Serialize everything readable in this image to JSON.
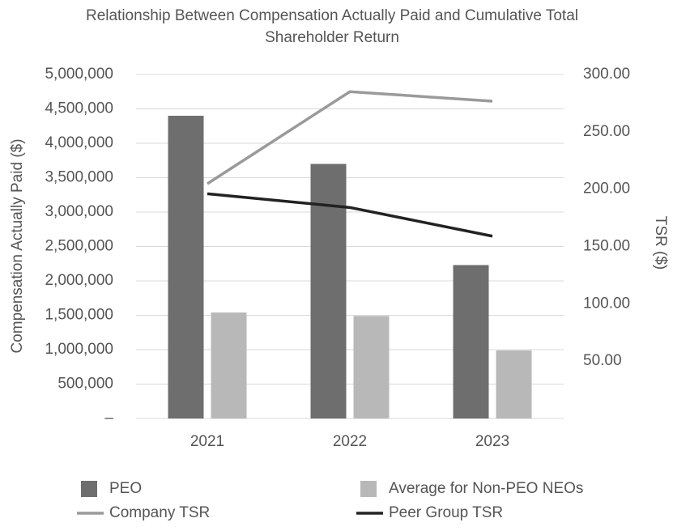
{
  "chart_data": {
    "type": "bar_line",
    "title": "Relationship Between Compensation Actually Paid and Cumulative Total Shareholder Return",
    "y_label": "Compensation Actually Paid ($)",
    "y2_label": "TSR ($)",
    "categories": [
      "2021",
      "2022",
      "2023"
    ],
    "series": [
      {
        "name": "PEO",
        "type": "bar",
        "color": "#6e6e6e",
        "values": [
          4400000,
          3700000,
          2230000
        ]
      },
      {
        "name": "Average for Non-PEO NEOs",
        "type": "bar",
        "color": "#b8b8b8",
        "values": [
          1540000,
          1490000,
          990000
        ]
      },
      {
        "name": "Company TSR",
        "type": "line",
        "axis": "y2",
        "color": "#9a9a9a",
        "values": [
          204.7,
          285,
          276.7
        ]
      },
      {
        "name": "Peer Group TSR",
        "type": "line",
        "axis": "y2",
        "color": "#222222",
        "values": [
          196,
          184,
          159
        ]
      }
    ],
    "ylim": [
      0,
      5000000
    ],
    "yticks": [
      {
        "value": 0,
        "label": "–"
      },
      {
        "value": 500000,
        "label": "500,000"
      },
      {
        "value": 1000000,
        "label": "1,000,000"
      },
      {
        "value": 1500000,
        "label": "1,500,000"
      },
      {
        "value": 2000000,
        "label": "2,000,000"
      },
      {
        "value": 2500000,
        "label": "2,500,000"
      },
      {
        "value": 3000000,
        "label": "3,000,000"
      },
      {
        "value": 3500000,
        "label": "3,500,000"
      },
      {
        "value": 4000000,
        "label": "4,000,000"
      },
      {
        "value": 4500000,
        "label": "4,500,000"
      },
      {
        "value": 5000000,
        "label": "5,000,000"
      }
    ],
    "y2lim": [
      0,
      300
    ],
    "y2ticks": [
      {
        "value": 50,
        "label": "50.00"
      },
      {
        "value": 100,
        "label": "100.00"
      },
      {
        "value": 150,
        "label": "150.00"
      },
      {
        "value": 200,
        "label": "200.00"
      },
      {
        "value": 250,
        "label": "250.00"
      },
      {
        "value": 300,
        "label": "300.00"
      }
    ],
    "grid": true,
    "legend": "bottom"
  }
}
